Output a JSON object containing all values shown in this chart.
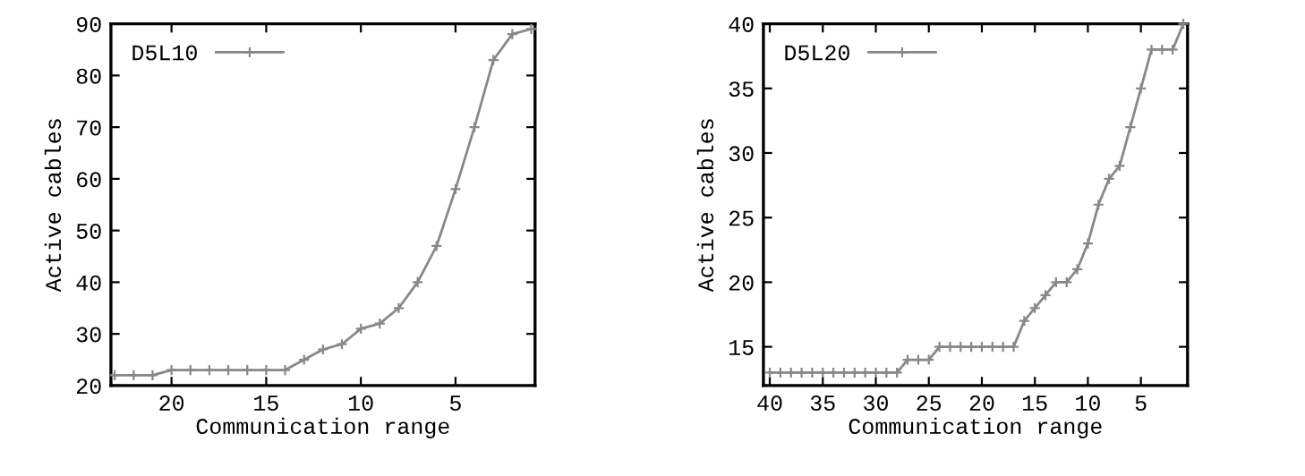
{
  "chart_data": [
    {
      "type": "line",
      "xlabel": "Communication range",
      "ylabel": "Active cables",
      "x": [
        23,
        22,
        21,
        20,
        19,
        18,
        17,
        16,
        15,
        14,
        13,
        12,
        11,
        10,
        9,
        8,
        7,
        6,
        5,
        4,
        3,
        2,
        1
      ],
      "series": [
        {
          "name": "D5L10",
          "color": "#888888",
          "values": [
            22,
            22,
            22,
            23,
            23,
            23,
            23,
            23,
            23,
            23,
            25,
            27,
            28,
            31,
            32,
            35,
            40,
            47,
            58,
            70,
            83,
            88,
            89
          ]
        }
      ],
      "xlim": [
        23.2,
        0.8
      ],
      "xticks": [
        20,
        15,
        10,
        5
      ],
      "ylim": [
        20,
        90
      ],
      "yticks": [
        20,
        30,
        40,
        50,
        60,
        70,
        80,
        90
      ],
      "legend": "top left",
      "marker": "cross",
      "line_style": "solid",
      "grid": false
    },
    {
      "type": "line",
      "xlabel": "Communication range",
      "ylabel": "Active cables",
      "x": [
        40,
        39,
        38,
        37,
        36,
        35,
        34,
        33,
        32,
        31,
        30,
        29,
        28,
        27,
        26,
        25,
        24,
        23,
        22,
        21,
        20,
        19,
        18,
        17,
        16,
        15,
        14,
        13,
        12,
        11,
        10,
        9,
        8,
        7,
        6,
        5,
        4,
        3,
        2,
        1
      ],
      "series": [
        {
          "name": "D5L20",
          "color": "#888888",
          "values": [
            13,
            13,
            13,
            13,
            13,
            13,
            13,
            13,
            13,
            13,
            13,
            13,
            13,
            14,
            14,
            14,
            15,
            15,
            15,
            15,
            15,
            15,
            15,
            15,
            17,
            18,
            19,
            20,
            20,
            21,
            23,
            26,
            28,
            29,
            32,
            35,
            38,
            38,
            38,
            40
          ]
        }
      ],
      "xlim": [
        40.6,
        0.6
      ],
      "xticks": [
        40,
        35,
        30,
        25,
        20,
        15,
        10,
        5
      ],
      "ylim": [
        12,
        40
      ],
      "yticks": [
        15,
        20,
        25,
        30,
        35,
        40
      ],
      "legend": "top left",
      "marker": "cross",
      "line_style": "solid",
      "grid": false
    }
  ]
}
